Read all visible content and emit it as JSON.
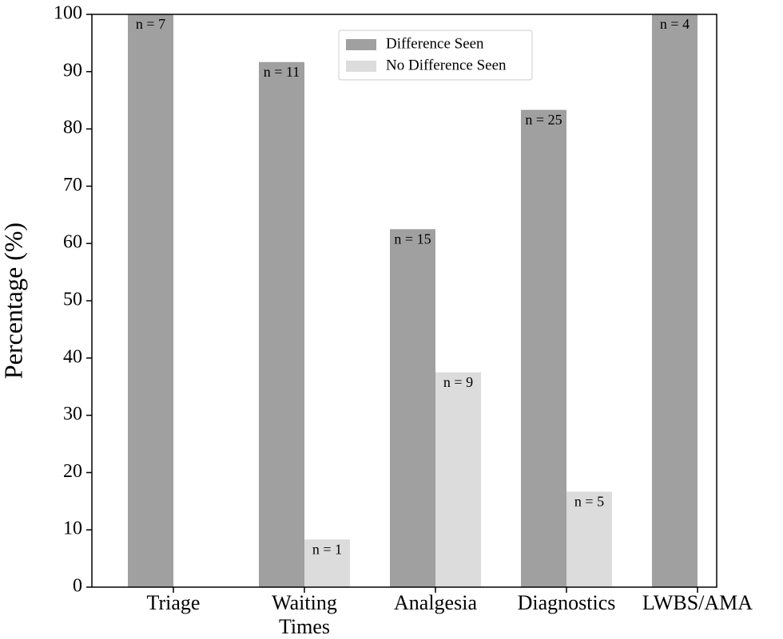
{
  "chart_data": {
    "type": "bar",
    "y_label": "Percentage (%)",
    "categories": [
      "Triage",
      "Waiting Times",
      "Analgesia",
      "Diagnostics",
      "LWBS/AMA"
    ],
    "series": [
      {
        "name": "Difference Seen",
        "color": "#a0a0a0",
        "values": [
          100,
          91.67,
          62.5,
          83.33,
          100
        ],
        "labels": [
          "n = 7",
          "n = 11",
          "n = 15",
          "n = 25",
          "n = 4"
        ]
      },
      {
        "name": "No Difference Seen",
        "color": "#dcdcdc",
        "values": [
          0,
          8.33,
          37.5,
          16.67,
          0
        ],
        "labels": [
          null,
          "n = 1",
          "n = 9",
          "n = 5",
          null
        ]
      }
    ],
    "ylim": [
      0,
      100
    ],
    "yticks": [
      0,
      10,
      20,
      30,
      40,
      50,
      60,
      70,
      80,
      90,
      100
    ],
    "legend": "upper center"
  }
}
